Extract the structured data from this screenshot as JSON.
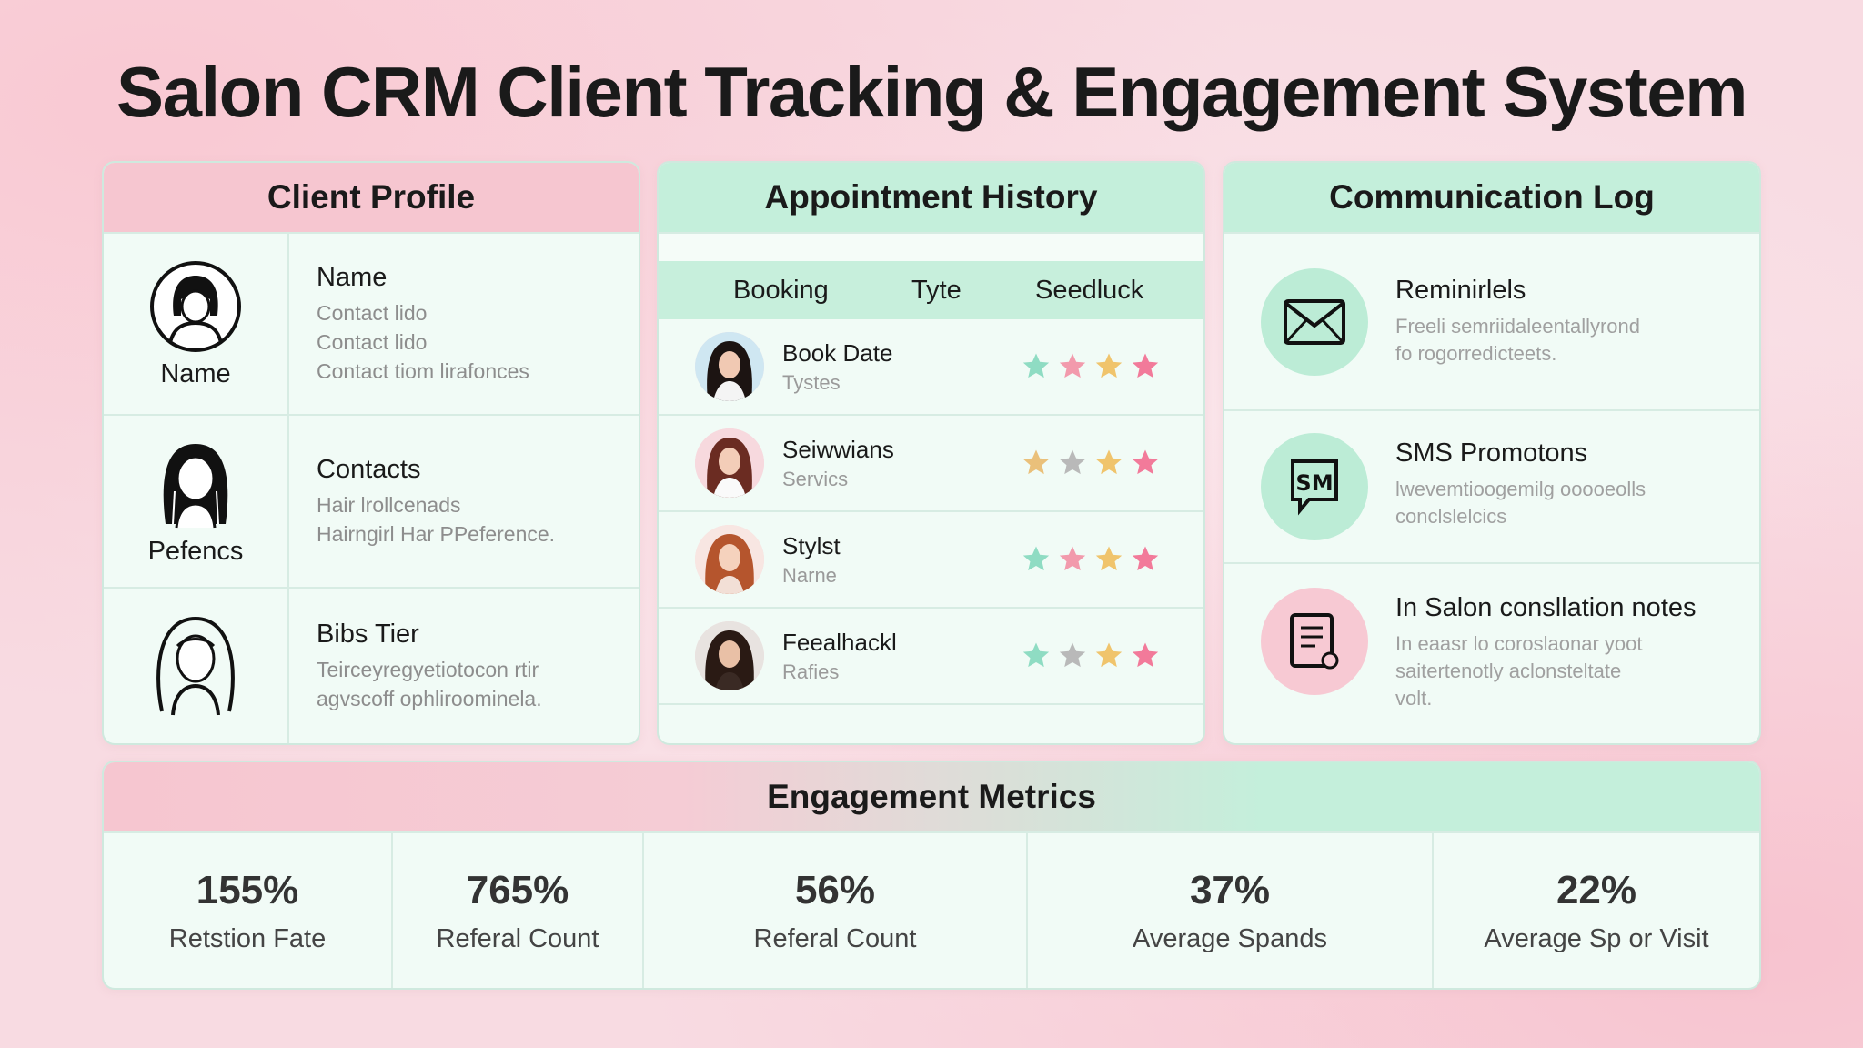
{
  "title": "Salon CRM Client Tracking & Engagement System",
  "client_profile": {
    "header": "Client Profile",
    "rows": [
      {
        "caption": "Name",
        "title": "Name",
        "lines": [
          "Contact lido",
          "Contact lido",
          "Contact tiom lirafonces"
        ]
      },
      {
        "caption": "Pefencs",
        "title": "Contacts",
        "lines": [
          "Hair lrollcenads",
          "Hairngirl Har PPeference."
        ]
      },
      {
        "caption": "",
        "title": "Bibs Tier",
        "lines": [
          "Teirceyregyetiotocon rtir",
          "agvscoff ophliroominela."
        ]
      }
    ]
  },
  "appointment_history": {
    "header": "Appointment History",
    "columns": [
      "Booking",
      "Tyte",
      "Seedluck"
    ],
    "rows": [
      {
        "title": "Book Date",
        "sub": "Tystes",
        "stars": [
          "#8fdcc3",
          "#f29aac",
          "#f0c46c",
          "#f27a9a"
        ]
      },
      {
        "title": "Seiwwians",
        "sub": "Servics",
        "stars": [
          "#eac07a",
          "#b9b9b9",
          "#f0c46c",
          "#f27a9a"
        ]
      },
      {
        "title": "Stylst",
        "sub": "Narne",
        "stars": [
          "#8fdcc3",
          "#f29aac",
          "#f0c46c",
          "#f27a9a"
        ]
      },
      {
        "title": "Feealhackl",
        "sub": "Rafies",
        "stars": [
          "#8fdcc3",
          "#b9b9b9",
          "#f0c46c",
          "#f27a9a"
        ]
      }
    ]
  },
  "communication_log": {
    "header": "Communication Log",
    "items": [
      {
        "icon": "envelope-icon",
        "title": "Reminirlels",
        "lines": [
          "Freeli semriidaleentallyrond",
          "fo rogorredicteets."
        ]
      },
      {
        "icon": "sms-icon",
        "title": "SMS Promotons",
        "lines": [
          "lwevemtioogemilg ooooeolls",
          "conclslelcics"
        ]
      },
      {
        "icon": "notes-icon",
        "title": "In Salon consllation notes",
        "lines": [
          "In eaasr lo coroslaonar yoot",
          "saitertenotly aclonsteltate",
          "volt."
        ]
      }
    ]
  },
  "engagement_metrics": {
    "header": "Engagement Metrics",
    "cells": [
      {
        "value": "155%",
        "label": "Retstion Fate"
      },
      {
        "value": "765%",
        "label": "Referal Count"
      },
      {
        "value": "56%",
        "label": "Referal Count"
      },
      {
        "value": "37%",
        "label": "Average Spands"
      },
      {
        "value": "22%",
        "label": "Average Sp or Visit"
      }
    ]
  },
  "colors": {
    "pink": "#f6c6d0",
    "mint": "#c4efdb",
    "border": "#d7ece3"
  }
}
